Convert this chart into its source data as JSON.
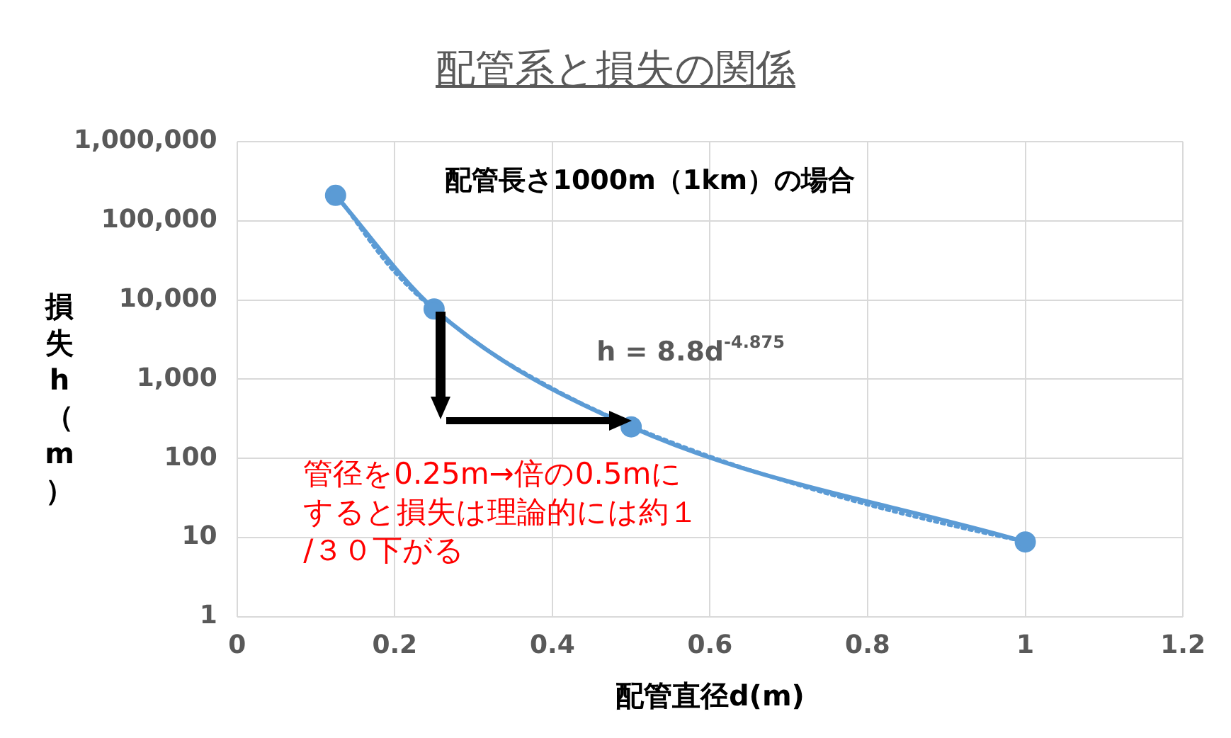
{
  "chart_data": {
    "type": "line",
    "title": "配管系と損失の関係",
    "xlabel": "配管直径d(m)",
    "ylabel": "損失h（m）",
    "annotations": [
      "配管長さ1000m（1km）の場合",
      "h = 8.8d$^{-4.875}$",
      "管径を0.25m→倍の0.5mにすると損失は理論的には約１/３０下がる"
    ],
    "log": "y",
    "grid": true,
    "legend": false,
    "marker": "circle",
    "line_style": "solid",
    "xlim": [
      0,
      1.2
    ],
    "xticks": [
      0,
      0.2,
      0.4,
      0.6,
      0.8,
      1,
      1.2
    ],
    "ylim": [
      1,
      1000000
    ],
    "yticks": [
      1,
      10,
      100,
      {
        "value": 1000,
        "label": "1,000"
      },
      {
        "value": 10000,
        "label": "10,000"
      },
      {
        "value": 100000,
        "label": "100,000"
      },
      {
        "value": 1000000,
        "label": "1,000,000"
      }
    ],
    "series": [
      {
        "color": "#5b9bd5",
        "x": [
          0.125,
          0.25,
          0.5,
          1
        ],
        "values": [
          210000,
          7700,
          250,
          8.8
        ]
      },
      {
        "type": "line",
        "color": "#5b9bd5",
        "line_style": "dotted",
        "marker": "none",
        "x": [
          0.125,
          0.2,
          0.3,
          0.4,
          0.5,
          0.6,
          0.7,
          0.8,
          0.9,
          1
        ],
        "values": [
          222000,
          22500,
          3100,
          770,
          258,
          106,
          50,
          26,
          14.7,
          8.8
        ]
      }
    ]
  }
}
